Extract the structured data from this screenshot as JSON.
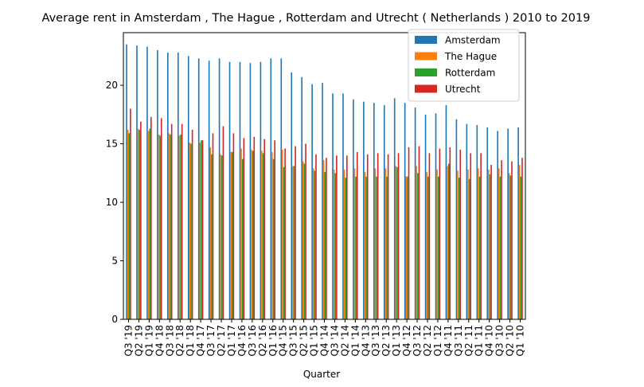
{
  "chart_data": {
    "type": "bar",
    "title": "Average rent in Amsterdam , The Hague , Rotterdam and Utrecht ( Netherlands ) 2010 to 2019",
    "xlabel": "Quarter",
    "ylabel": "",
    "ylim": [
      0,
      24.5
    ],
    "yticks": [
      0,
      5,
      10,
      15,
      20
    ],
    "grid": false,
    "legend_position": "top-right",
    "categories": [
      "Q3 '19",
      "Q2 '19",
      "Q1 '19",
      "Q4 '18",
      "Q3 '18",
      "Q2 '18",
      "Q1 '18",
      "Q4 '17",
      "Q3 '17",
      "Q2 '17",
      "Q1 '17",
      "Q4 '16",
      "Q3 '16",
      "Q2 '16",
      "Q1 '16",
      "Q4 '15",
      "Q3 '15",
      "Q2 '15",
      "Q1 '15",
      "Q4 '14",
      "Q3 '14",
      "Q2 '14",
      "Q1 '14",
      "Q4 '13",
      "Q3 '13",
      "Q2 '13",
      "Q1 '13",
      "Q4 '12",
      "Q3 '12",
      "Q2 '12",
      "Q1 '12",
      "Q4 '11",
      "Q3 '11",
      "Q2 '11",
      "Q1 '11",
      "Q4 '10",
      "Q3 '10",
      "Q2 '10",
      "Q1 '10"
    ],
    "series": [
      {
        "name": "Amsterdam",
        "color": "#1f77b4",
        "values": [
          23.5,
          23.4,
          23.3,
          23.0,
          22.8,
          22.8,
          22.5,
          22.3,
          22.1,
          22.3,
          22.0,
          22.0,
          21.9,
          22.0,
          22.3,
          22.3,
          21.1,
          20.7,
          20.1,
          20.2,
          19.3,
          19.3,
          18.8,
          18.6,
          18.5,
          18.3,
          18.9,
          18.5,
          18.1,
          17.5,
          17.6,
          18.3,
          17.1,
          16.7,
          16.6,
          16.4,
          16.1,
          16.3,
          16.4
        ]
      },
      {
        "name": "The Hague",
        "color": "#ff7f0e",
        "values": [
          16.2,
          16.3,
          16.1,
          15.8,
          15.9,
          15.7,
          15.1,
          15.1,
          14.7,
          14.1,
          14.3,
          14.6,
          14.5,
          14.4,
          14.3,
          14.5,
          13.1,
          13.5,
          12.9,
          13.6,
          12.8,
          12.8,
          12.9,
          12.6,
          12.9,
          12.9,
          13.1,
          12.2,
          13.1,
          12.6,
          12.8,
          13.1,
          12.7,
          12.8,
          12.9,
          12.8,
          12.9,
          12.5,
          13.2
        ]
      },
      {
        "name": "Rotterdam",
        "color": "#2ca02c",
        "values": [
          15.9,
          16.2,
          16.3,
          15.7,
          15.8,
          15.8,
          15.0,
          15.3,
          14.1,
          14.0,
          14.3,
          13.7,
          14.4,
          14.2,
          13.7,
          13.0,
          13.1,
          13.3,
          12.7,
          12.6,
          12.5,
          12.1,
          12.2,
          12.2,
          12.2,
          12.2,
          13.0,
          12.2,
          12.5,
          12.2,
          12.2,
          13.3,
          12.1,
          12.0,
          12.2,
          12.4,
          12.2,
          12.3,
          12.2
        ]
      },
      {
        "name": "Utrecht",
        "color": "#d62728",
        "values": [
          18.0,
          16.9,
          17.3,
          17.2,
          16.7,
          16.7,
          16.2,
          15.3,
          15.9,
          16.5,
          15.9,
          15.5,
          15.6,
          15.4,
          15.3,
          14.6,
          14.8,
          15.0,
          14.1,
          13.8,
          14.0,
          14.0,
          14.3,
          14.1,
          14.2,
          14.1,
          14.2,
          14.7,
          14.8,
          14.2,
          14.6,
          14.7,
          14.5,
          14.2,
          14.2,
          13.2,
          13.6,
          13.5,
          13.8
        ]
      }
    ]
  }
}
